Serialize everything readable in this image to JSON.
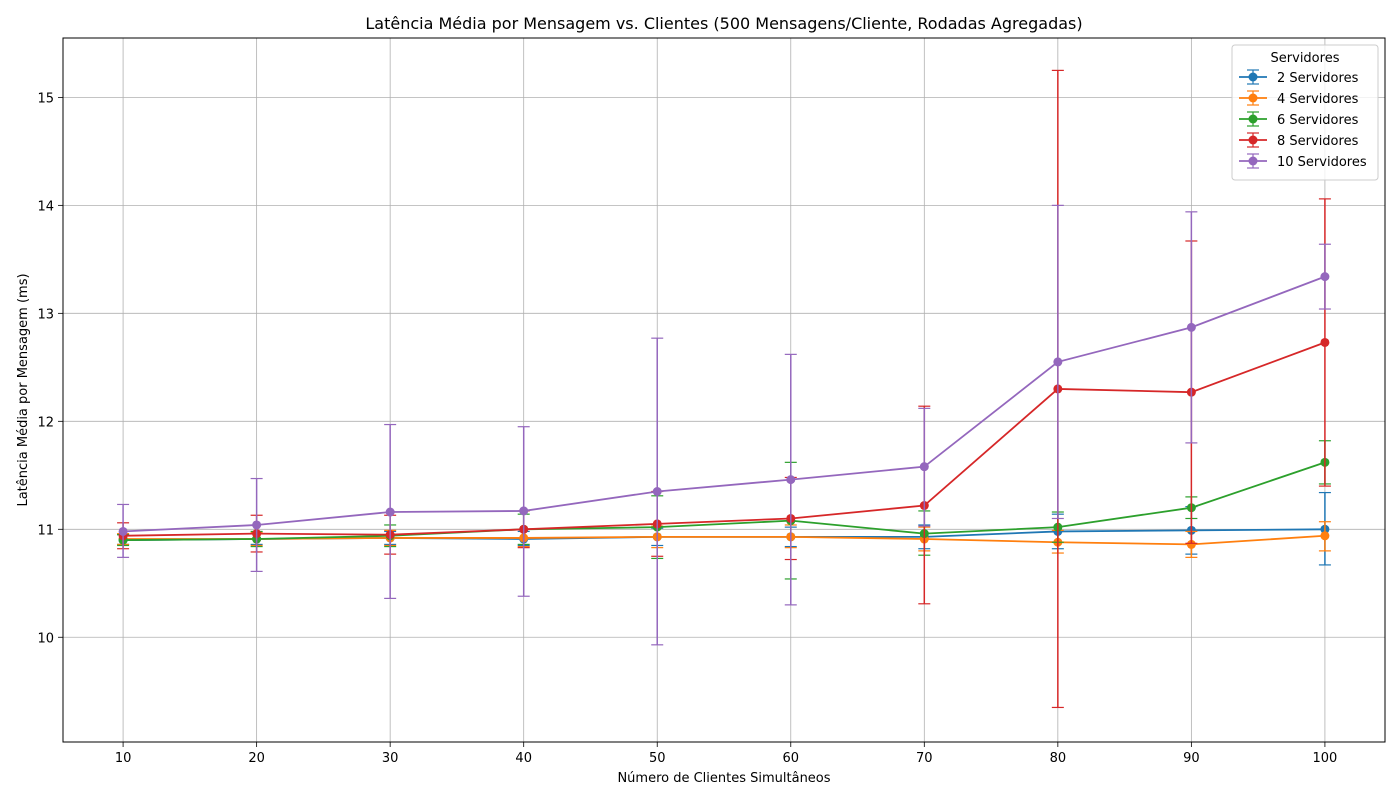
{
  "chart_data": {
    "type": "line",
    "title": "Latência Média por Mensagem vs. Clientes (500 Mensagens/Cliente, Rodadas Agregadas)",
    "xlabel": "Número de Clientes Simultâneos",
    "ylabel": "Latência Média por Mensagem (ms)",
    "x": [
      10,
      20,
      30,
      40,
      50,
      60,
      70,
      80,
      90,
      100
    ],
    "x_ticks": [
      "10",
      "20",
      "30",
      "40",
      "50",
      "60",
      "70",
      "80",
      "90",
      "100"
    ],
    "y_ticks": [
      "10",
      "11",
      "12",
      "13",
      "14",
      "15"
    ],
    "xlim": [
      5.5,
      104.5
    ],
    "ylim": [
      9.03,
      15.55
    ],
    "grid": true,
    "legend_title": "Servidores",
    "legend_position": "top-right",
    "series": [
      {
        "name": "2 Servidores",
        "color": "#1f77b4",
        "values": [
          10.9,
          10.91,
          10.92,
          10.91,
          10.93,
          10.93,
          10.93,
          10.98,
          10.99,
          11.0
        ],
        "err_low": [
          10.86,
          10.86,
          10.86,
          10.85,
          10.85,
          10.84,
          10.82,
          10.82,
          10.77,
          10.67
        ],
        "err_high": [
          10.95,
          10.96,
          10.98,
          10.98,
          11.01,
          11.02,
          11.04,
          11.14,
          11.21,
          11.34
        ]
      },
      {
        "name": "4 Servidores",
        "color": "#ff7f0e",
        "values": [
          10.91,
          10.91,
          10.92,
          10.92,
          10.93,
          10.93,
          10.91,
          10.88,
          10.86,
          10.94
        ],
        "err_low": [
          10.86,
          10.85,
          10.85,
          10.84,
          10.83,
          10.83,
          10.8,
          10.78,
          10.74,
          10.8
        ],
        "err_high": [
          10.96,
          10.97,
          10.99,
          11.0,
          11.03,
          11.04,
          11.02,
          10.99,
          10.98,
          11.07
        ]
      },
      {
        "name": "6 Servidores",
        "color": "#2ca02c",
        "values": [
          10.9,
          10.91,
          10.94,
          11.0,
          11.02,
          11.08,
          10.96,
          11.02,
          11.2,
          11.62
        ],
        "err_low": [
          10.85,
          10.84,
          10.84,
          10.86,
          10.73,
          10.54,
          10.76,
          10.88,
          11.1,
          11.42
        ],
        "err_high": [
          10.95,
          10.98,
          11.04,
          11.14,
          11.31,
          11.62,
          11.17,
          11.16,
          11.3,
          11.82
        ]
      },
      {
        "name": "8 Servidores",
        "color": "#d62728",
        "values": [
          10.94,
          10.96,
          10.95,
          11.0,
          11.05,
          11.1,
          11.22,
          12.3,
          12.27,
          12.73
        ],
        "err_low": [
          10.82,
          10.79,
          10.77,
          10.83,
          10.75,
          10.72,
          10.31,
          9.35,
          10.87,
          11.4
        ],
        "err_high": [
          11.06,
          11.13,
          11.13,
          11.17,
          11.35,
          11.48,
          12.14,
          15.25,
          13.67,
          14.06
        ]
      },
      {
        "name": "10 Servidores",
        "color": "#9467bd",
        "values": [
          10.98,
          11.04,
          11.16,
          11.17,
          11.35,
          11.46,
          11.58,
          12.55,
          12.87,
          13.34
        ],
        "err_low": [
          10.74,
          10.61,
          10.36,
          10.38,
          9.93,
          10.3,
          11.03,
          11.1,
          11.8,
          13.04
        ],
        "err_high": [
          11.23,
          11.47,
          11.97,
          11.95,
          12.77,
          12.62,
          12.12,
          14.0,
          13.94,
          13.64
        ]
      }
    ]
  }
}
